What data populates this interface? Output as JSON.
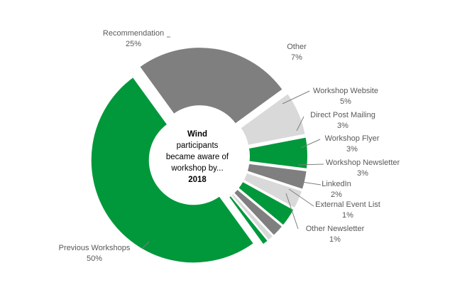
{
  "chart_data": {
    "type": "pie",
    "style": "doughnut",
    "center_label": {
      "title": "Wind",
      "lines": [
        "participants",
        "became aware of",
        "workshop by..."
      ],
      "year": "2018"
    },
    "slices": [
      {
        "name": "Recommendation",
        "value": 25,
        "label": "25%",
        "color": "#7f7f7f"
      },
      {
        "name": "Other",
        "value": 7,
        "label": "7%",
        "color": "#d9d9d9"
      },
      {
        "name": "Workshop Website",
        "value": 5,
        "label": "5%",
        "color": "#00983a"
      },
      {
        "name": "Direct Post Mailing",
        "value": 3,
        "label": "3%",
        "color": "#7f7f7f"
      },
      {
        "name": "Workshop Flyer",
        "value": 3,
        "label": "3%",
        "color": "#d9d9d9"
      },
      {
        "name": "Workshop Newsletter",
        "value": 3,
        "label": "3%",
        "color": "#00983a"
      },
      {
        "name": "LinkedIn",
        "value": 2,
        "label": "2%",
        "color": "#7f7f7f"
      },
      {
        "name": "External Event List",
        "value": 1,
        "label": "1%",
        "color": "#d9d9d9"
      },
      {
        "name": "Other Newsletter",
        "value": 1,
        "label": "1%",
        "color": "#00983a"
      },
      {
        "name": "Previous Workshops",
        "value": 50,
        "label": "50%",
        "color": "#00983a"
      }
    ],
    "legend": "none"
  }
}
